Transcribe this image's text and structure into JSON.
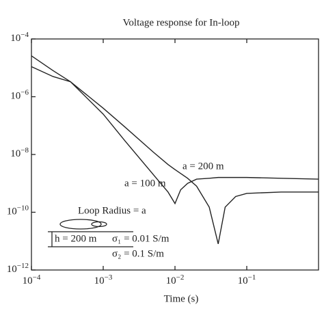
{
  "chart_data": {
    "type": "line",
    "title": "Voltage response for In-loop",
    "x_label": "Time (s)",
    "log_x": true,
    "log_y": true,
    "xlim": [
      0.0001,
      1
    ],
    "ylim": [
      1e-12,
      0.0001
    ],
    "xticks": [
      {
        "value": 0.0001,
        "label": "10−4"
      },
      {
        "value": 0.001,
        "label": "10−3"
      },
      {
        "value": 0.01,
        "label": "10−2"
      },
      {
        "value": 0.1,
        "label": "10−1"
      }
    ],
    "yticks": [
      {
        "value": 1e-12,
        "label": "10−12"
      },
      {
        "value": 1e-10,
        "label": "10−10"
      },
      {
        "value": 1e-08,
        "label": "10−8"
      },
      {
        "value": 1e-06,
        "label": "10−6"
      },
      {
        "value": 0.0001,
        "label": "10−4"
      }
    ],
    "x": [
      0.0001,
      0.0002,
      0.00035,
      0.001,
      0.002,
      0.005,
      0.008,
      0.01,
      0.012,
      0.015,
      0.02,
      0.03,
      0.04,
      0.05,
      0.07,
      0.1,
      0.3,
      1
    ],
    "series": [
      {
        "name": "a = 100 m",
        "color": "#222222",
        "values": [
          1.1e-05,
          5e-06,
          3.3e-06,
          2.5e-07,
          3e-08,
          2e-09,
          5e-10,
          2e-10,
          6e-10,
          1e-09,
          1.4e-09,
          1.5e-09,
          1.6e-09,
          1.6e-09,
          1.6e-09,
          1.6e-09,
          1.5e-09,
          1.4e-09
        ]
      },
      {
        "name": "a = 200 m",
        "color": "#222222",
        "values": [
          2.6e-05,
          8e-06,
          3.3e-06,
          4e-07,
          9e-08,
          1.2e-08,
          4.5e-09,
          3e-09,
          2.2e-09,
          1.5e-09,
          8e-10,
          1.5e-10,
          8e-12,
          1.5e-10,
          3.5e-10,
          4.5e-10,
          5e-10,
          5e-10
        ]
      }
    ],
    "annotations": [
      "Loop Radius = a",
      "h = 200 m",
      "σ₁ = 0.01 S/m",
      "σ₂ = 0.1 S/m"
    ]
  }
}
